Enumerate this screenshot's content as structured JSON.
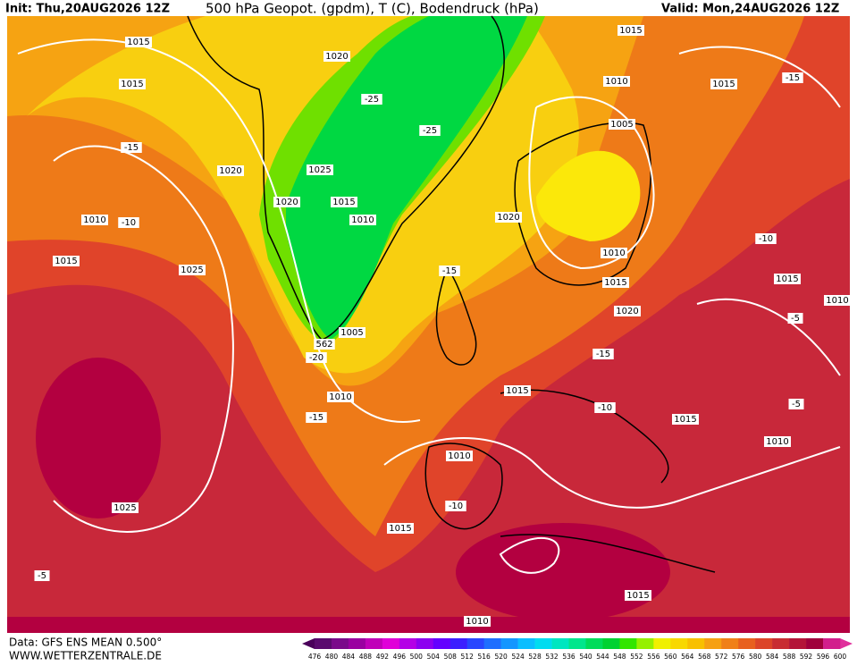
{
  "header": {
    "init": "Init: Thu,20AUG2026 12Z",
    "title": "500 hPa Geopot. (gpdm), T (C), Bodendruck (hPa)",
    "valid": "Valid: Mon,24AUG2026 12Z"
  },
  "footer": {
    "data": "Data: GFS ENS MEAN 0.500°",
    "site": "WWW.WETTERZENTRALE.DE"
  },
  "labels": [
    "1015",
    "1015",
    "-15",
    "1020",
    "1010",
    "-10",
    "1015",
    "1025",
    "1020",
    "-25",
    "-25",
    "1025",
    "1020",
    "1015",
    "1010",
    "562",
    "1005",
    "-20",
    "1010",
    "-15",
    "1015",
    "1010",
    "1005",
    "1015",
    "-15",
    "1020",
    "-10",
    "-15",
    "1010",
    "1015",
    "1015",
    "1010",
    "1020",
    "-5",
    "-15",
    "1015",
    "-10",
    "-5",
    "1015",
    "1010",
    "1010",
    "-10",
    "1025",
    "1015",
    "-5",
    "1015",
    "1010"
  ],
  "scale": {
    "labels": [
      476,
      480,
      484,
      488,
      492,
      496,
      500,
      504,
      508,
      512,
      516,
      520,
      524,
      528,
      532,
      536,
      540,
      544,
      548,
      552,
      556,
      560,
      564,
      568,
      572,
      576,
      580,
      584,
      588,
      592,
      596,
      600
    ],
    "colors": [
      "#5a0a6e",
      "#7a0a8a",
      "#9a00a0",
      "#c000b8",
      "#e000d8",
      "#b400e6",
      "#8c00f0",
      "#6400ff",
      "#3c1eff",
      "#2846ff",
      "#1e6eff",
      "#1496ff",
      "#0abeff",
      "#00dcf0",
      "#00e6c0",
      "#00e68c",
      "#00dc5a",
      "#00d232",
      "#32e600",
      "#96f000",
      "#f0f000",
      "#f8d800",
      "#f8c000",
      "#f6a012",
      "#f08018",
      "#e8601e",
      "#dc4428",
      "#c82c32",
      "#b41438",
      "#a0003c",
      "#d21e8c"
    ]
  }
}
